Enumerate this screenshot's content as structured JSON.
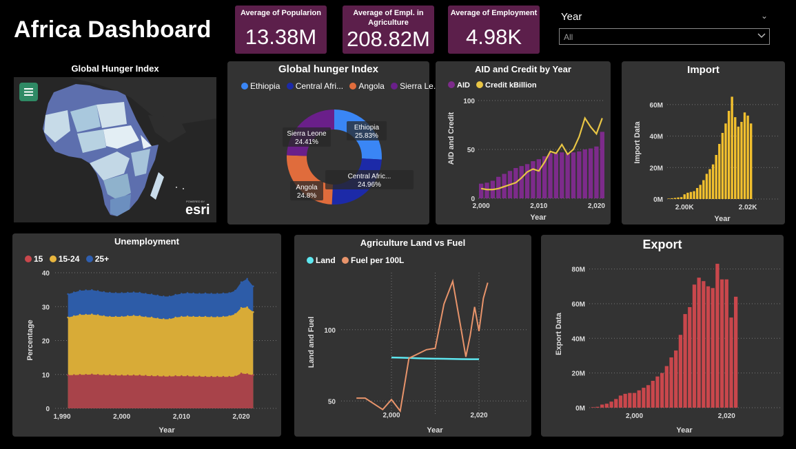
{
  "title": "Africa Dashboard",
  "kpis": [
    {
      "label": "Average of Popularion",
      "value": "13.38M"
    },
    {
      "label": "Average of Empl. in Agriculture",
      "value": "208.82M"
    },
    {
      "label": "Average of Employment",
      "value": "4.98K"
    }
  ],
  "filter": {
    "label": "Year",
    "value": "All"
  },
  "colors": {
    "panel": "#333333",
    "kpi": "#5c1f4b",
    "aid": "#7d2b8b",
    "credit": "#e8c545",
    "import": "#f2c02e",
    "export": "#c9474c",
    "land": "#5ee7f0",
    "fuel": "#e8946b"
  },
  "map": {
    "title": "Global Hunger Index",
    "attribution_small": "POWERED BY",
    "attribution": "esri",
    "menu_icon": "hamburger-menu-icon"
  },
  "donut": {
    "title": "Global hunger Index",
    "legend": [
      "Ethiopia",
      "Central Afri...",
      "Angola",
      "Sierra Le..."
    ],
    "chart_data": {
      "type": "pie",
      "slices": [
        {
          "label": "Ethiopia",
          "value": 25.83,
          "display": "25.83%",
          "color": "#3a86f5"
        },
        {
          "label": "Central Afric...",
          "value": 24.96,
          "display": "24.96%",
          "color": "#1c2aa8"
        },
        {
          "label": "Angola",
          "value": 24.8,
          "display": "24.8%",
          "color": "#e06c3c"
        },
        {
          "label": "Sierra Leone",
          "value": 24.41,
          "display": "24.41%",
          "color": "#6a1f8a"
        }
      ]
    }
  },
  "aid": {
    "title": "AID and Credit by Year",
    "legend": [
      "AID",
      "Credit kBillion"
    ],
    "chart_data": {
      "type": "bar",
      "x": [
        2000,
        2001,
        2002,
        2003,
        2004,
        2005,
        2006,
        2007,
        2008,
        2009,
        2010,
        2011,
        2012,
        2013,
        2014,
        2015,
        2016,
        2017,
        2018,
        2019,
        2020,
        2021
      ],
      "series": [
        {
          "name": "AID",
          "type": "bar",
          "values": [
            15,
            16,
            18,
            22,
            25,
            28,
            31,
            33,
            35,
            38,
            40,
            43,
            46,
            46,
            47,
            46,
            47,
            48,
            50,
            51,
            53,
            68
          ]
        },
        {
          "name": "Credit kBillion",
          "type": "line",
          "values": [
            10,
            9,
            9,
            10,
            12,
            14,
            16,
            21,
            27,
            30,
            28,
            37,
            48,
            46,
            55,
            45,
            50,
            63,
            82,
            73,
            66,
            82
          ]
        }
      ],
      "xlabel": "Year",
      "ylabel": "AID and Credit",
      "ylim": [
        0,
        100
      ],
      "xticks": [
        "2,000",
        "2,010",
        "2,020"
      ],
      "yticks": [
        "0",
        "50",
        "100"
      ]
    }
  },
  "import": {
    "title": "Import",
    "chart_data": {
      "type": "bar",
      "x": [
        1995,
        1996,
        1997,
        1998,
        1999,
        2000,
        2001,
        2002,
        2003,
        2004,
        2005,
        2006,
        2007,
        2008,
        2009,
        2010,
        2011,
        2012,
        2013,
        2014,
        2015,
        2016,
        2017,
        2018,
        2019,
        2020,
        2021
      ],
      "values": [
        0.3,
        0.5,
        0.7,
        1,
        1.2,
        3,
        4,
        4.5,
        5,
        7,
        9,
        12,
        16,
        19,
        22,
        28,
        35,
        42,
        48,
        56,
        65,
        52,
        46,
        49,
        55,
        53,
        48
      ],
      "values_unit": "M",
      "xlabel": "Year",
      "ylabel": "Import Data",
      "ylim": [
        0,
        70
      ],
      "xticks": [
        "2.00K",
        "2.02K"
      ],
      "yticks": [
        "0M",
        "20M",
        "40M",
        "60M"
      ]
    }
  },
  "unemployment": {
    "title": "Unemployment",
    "legend": [
      "15",
      "15-24",
      "25+"
    ],
    "chart_data": {
      "type": "area",
      "x": [
        1991,
        1992,
        1993,
        1994,
        1995,
        1996,
        1997,
        1998,
        1999,
        2000,
        2001,
        2002,
        2003,
        2004,
        2005,
        2006,
        2007,
        2008,
        2009,
        2010,
        2011,
        2012,
        2013,
        2014,
        2015,
        2016,
        2017,
        2018,
        2019,
        2020,
        2021,
        2022
      ],
      "series": [
        {
          "name": "15",
          "values": [
            9.8,
            9.8,
            9.9,
            9.9,
            10,
            9.9,
            9.8,
            9.8,
            9.7,
            9.7,
            9.7,
            9.7,
            9.7,
            9.6,
            9.5,
            9.5,
            9.4,
            9.4,
            9.5,
            9.5,
            9.5,
            9.4,
            9.4,
            9.3,
            9.3,
            9.3,
            9.3,
            9.3,
            9.4,
            10.3,
            10.1,
            9.8
          ]
        },
        {
          "name": "15-24",
          "values": [
            26.8,
            27.2,
            27.6,
            27.6,
            27.7,
            27.5,
            27.2,
            27.0,
            27.0,
            27.0,
            27.2,
            27.3,
            27.2,
            26.9,
            26.8,
            26.5,
            26.3,
            26.3,
            26.8,
            27.0,
            27.1,
            27.0,
            27.0,
            27.0,
            26.9,
            26.9,
            27.0,
            27.2,
            27.8,
            29.6,
            29.8,
            28.4
          ]
        },
        {
          "name": "25+",
          "values": [
            33.7,
            34.2,
            34.7,
            34.8,
            34.9,
            34.6,
            34.3,
            34.1,
            34.0,
            34.0,
            34.1,
            34.2,
            34.1,
            33.8,
            33.6,
            33.3,
            33.0,
            33.0,
            33.5,
            33.8,
            34.0,
            33.9,
            33.8,
            33.9,
            33.8,
            33.8,
            33.9,
            34.0,
            34.7,
            37.2,
            38.2,
            36.0
          ]
        }
      ],
      "xlabel": "Year",
      "ylabel": "Percentage",
      "ylim": [
        0,
        40
      ],
      "xticks": [
        "1,990",
        "2,000",
        "2,010",
        "2,020"
      ],
      "yticks": [
        "0",
        "10",
        "20",
        "30",
        "40"
      ]
    }
  },
  "agri": {
    "title": "Agriculture Land vs Fuel",
    "legend": [
      "Land",
      "Fuel per 100L"
    ],
    "chart_data": {
      "type": "line",
      "series": [
        {
          "name": "Land",
          "x": [
            2000,
            2002,
            2004,
            2006,
            2008,
            2010,
            2012,
            2014,
            2016,
            2018,
            2020
          ],
          "values": [
            80.5,
            80.4,
            80.2,
            80.0,
            79.8,
            79.7,
            79.6,
            79.5,
            79.4,
            79.3,
            79.3
          ]
        },
        {
          "name": "Fuel per 100L",
          "x": [
            1992,
            1994,
            1996,
            1998,
            2000,
            2002,
            2004,
            2006,
            2008,
            2010,
            2012,
            2014,
            2016,
            2017,
            2018,
            2019,
            2020,
            2021,
            2022
          ],
          "values": [
            52,
            52,
            48,
            44,
            51,
            43,
            80,
            83,
            86,
            87,
            118,
            134,
            99,
            81,
            96,
            116,
            99,
            122,
            133
          ]
        }
      ],
      "xlabel": "Year",
      "ylabel": "Land and Fuel",
      "ylim": [
        40,
        140
      ],
      "xticks": [
        "2,000",
        "2,020"
      ],
      "yticks": [
        "50",
        "100"
      ]
    }
  },
  "export": {
    "title": "Export",
    "chart_data": {
      "type": "bar",
      "x": [
        1991,
        1992,
        1993,
        1994,
        1995,
        1996,
        1997,
        1998,
        1999,
        2000,
        2001,
        2002,
        2003,
        2004,
        2005,
        2006,
        2007,
        2008,
        2009,
        2010,
        2011,
        2012,
        2013,
        2014,
        2015,
        2016,
        2017,
        2018,
        2019,
        2020,
        2021,
        2022
      ],
      "values": [
        0.3,
        0.5,
        1.8,
        2.3,
        3.5,
        5,
        7,
        8,
        8.5,
        8.5,
        10,
        11.5,
        13,
        15.5,
        18,
        20,
        24,
        29,
        33,
        42,
        54,
        58,
        71,
        75,
        73,
        70,
        69,
        83,
        74,
        74,
        52,
        64
      ],
      "values_unit": "M",
      "xlabel": "Year",
      "ylabel": "Export Data",
      "ylim": [
        0,
        85
      ],
      "xticks": [
        "2,000",
        "2,020"
      ],
      "yticks": [
        "0M",
        "20M",
        "40M",
        "60M",
        "80M"
      ]
    }
  }
}
